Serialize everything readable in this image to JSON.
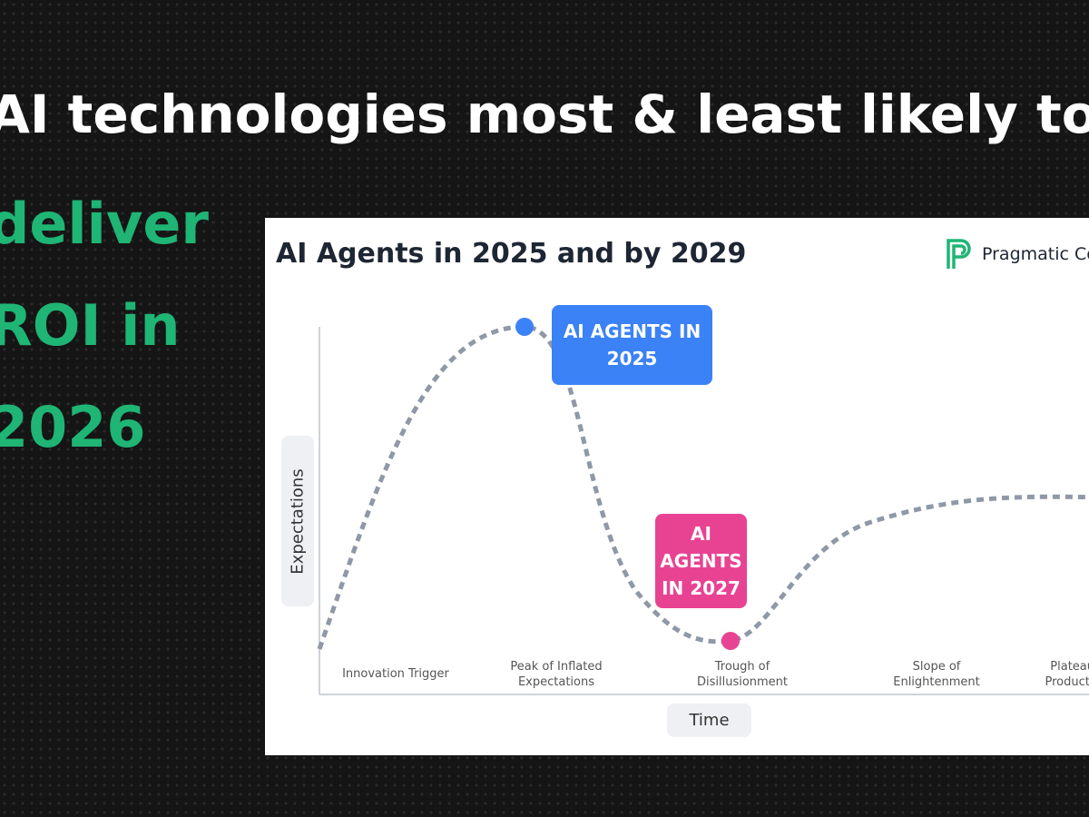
{
  "headline": {
    "title": "AI technologies most & least likely to",
    "highlight": [
      "deliver",
      "ROI in",
      "2026"
    ]
  },
  "card": {
    "title": "AI Agents in 2025 and by 2029",
    "brand": "Pragmatic Coders",
    "axes": {
      "y": "Expectations",
      "x": "Time"
    },
    "callouts": [
      {
        "lines": [
          "AI AGENTS IN",
          "2025"
        ]
      },
      {
        "lines": [
          "AI",
          "AGENTS",
          "IN 2027"
        ]
      }
    ],
    "phases": [
      [
        "Innovation Trigger"
      ],
      [
        "Peak of Inflated",
        "Expectations"
      ],
      [
        "Trough of",
        "Disillusionment"
      ],
      [
        "Slope of",
        "Enlightenment"
      ],
      [
        "Plateau of",
        "Productivity"
      ]
    ]
  }
}
